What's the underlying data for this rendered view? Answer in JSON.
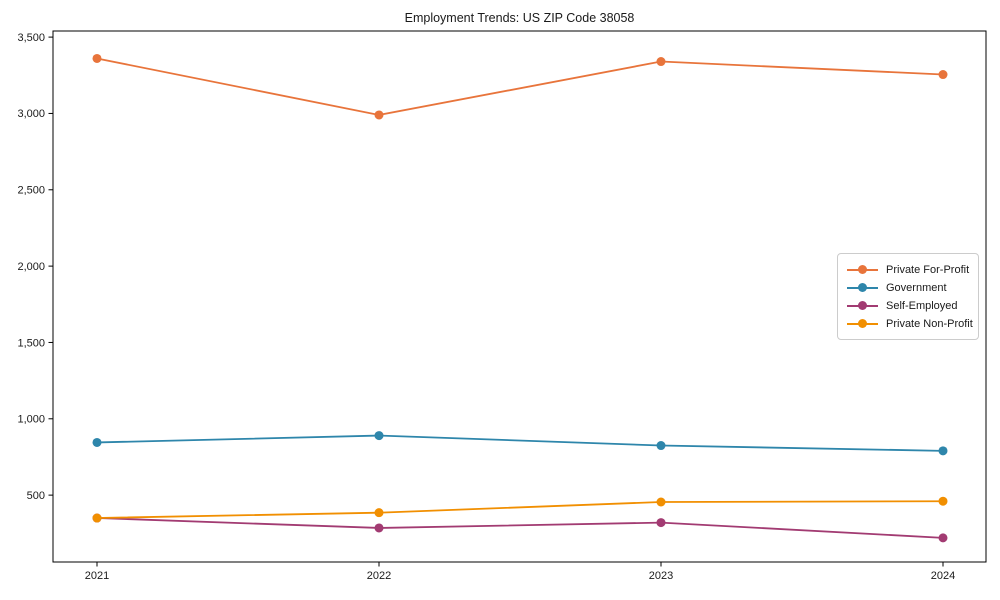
{
  "chart_data": {
    "type": "line",
    "title": "Employment Trends: US ZIP Code 38058",
    "x": [
      2021,
      2022,
      2023,
      2024
    ],
    "x_tick_labels": [
      "2021",
      "2022",
      "2023",
      "2024"
    ],
    "y_tick_values": [
      500,
      1000,
      1500,
      2000,
      2500,
      3000,
      3500
    ],
    "y_tick_labels": [
      "500",
      "1,000",
      "1,500",
      "2,000",
      "2,500",
      "3,000",
      "3,500"
    ],
    "ylim": [
      62,
      3540
    ],
    "xlabel": "",
    "ylabel": "",
    "grid": false,
    "legend_position": "center-right",
    "background_color": "#ffffff",
    "axis_color": "#000000",
    "series": [
      {
        "name": "Private For-Profit",
        "color": "#E8743B",
        "values": [
          3360,
          2990,
          3340,
          3255
        ]
      },
      {
        "name": "Government",
        "color": "#2E86AB",
        "values": [
          845,
          890,
          825,
          790
        ]
      },
      {
        "name": "Self-Employed",
        "color": "#A23B72",
        "values": [
          350,
          285,
          320,
          220
        ]
      },
      {
        "name": "Private Non-Profit",
        "color": "#F18F01",
        "values": [
          350,
          385,
          455,
          460
        ]
      }
    ]
  }
}
